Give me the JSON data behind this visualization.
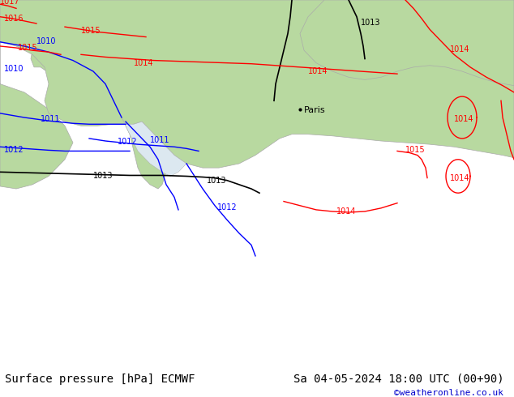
{
  "title_left": "Surface pressure [hPa] ECMWF",
  "title_right": "Sa 04-05-2024 18:00 UTC (00+90)",
  "credit": "©weatheronline.co.uk",
  "background_color": "#ffffff",
  "land_color": "#b8d9a0",
  "sea_color": "#dce8f0",
  "border_color": "#aaaaaa",
  "bottom_bar_color": "#e8e8e8",
  "figsize": [
    6.34,
    4.9
  ],
  "dpi": 100,
  "title_fontsize": 10,
  "credit_fontsize": 8,
  "credit_color": "#0000cc",
  "label_fontsize": 8
}
